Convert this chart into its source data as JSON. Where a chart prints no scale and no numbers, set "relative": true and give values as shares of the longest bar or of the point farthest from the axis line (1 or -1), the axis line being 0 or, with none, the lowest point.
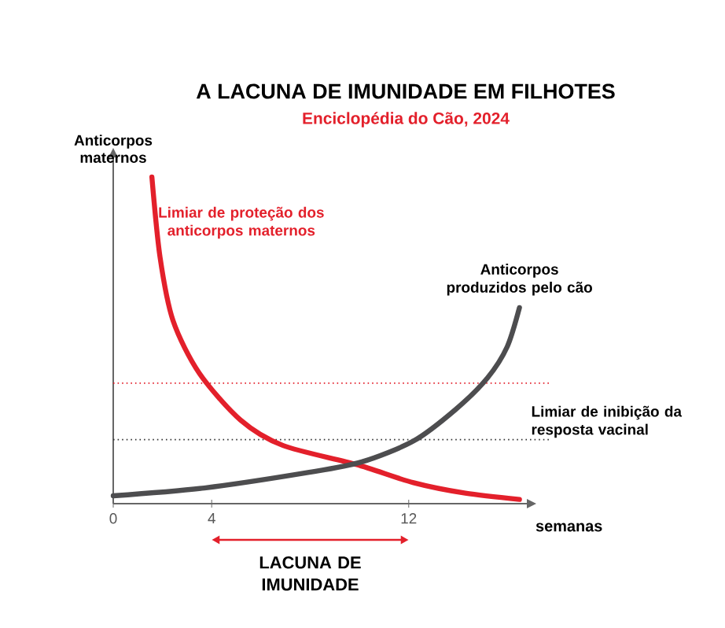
{
  "chart_data": {
    "type": "line",
    "title": "A LACUNA DE IMUNIDADE EM FILHOTES",
    "subtitle": "Enciclopédia do Cão, 2024",
    "xlabel": "semanas",
    "ylabel": "Anticorpos maternos",
    "relative": true,
    "xlim": [
      0,
      16.8
    ],
    "xticks": [
      0,
      4,
      12
    ],
    "tick_labels": "x",
    "series": [
      {
        "name": "Limiar de proteção dos anticorpos maternos",
        "color": "#e3202b",
        "x": [
          1.57,
          1.9,
          2.43,
          3.49,
          5.17,
          6.9,
          9.87,
          12.2,
          14.3,
          16.5
        ],
        "values": [
          1.0,
          0.755,
          0.56,
          0.4,
          0.256,
          0.178,
          0.12,
          0.064,
          0.032,
          0.013
        ]
      },
      {
        "name": "Anticorpos produzidos pelo cão",
        "color": "#4d4d4f",
        "x": [
          0,
          3.7,
          7.96,
          10.1,
          12.2,
          13.9,
          15.2,
          16.0,
          16.5
        ],
        "values": [
          0.024,
          0.048,
          0.096,
          0.128,
          0.192,
          0.288,
          0.385,
          0.48,
          0.6
        ]
      }
    ],
    "ref_lines": [
      {
        "axis": "y",
        "value": 0.369,
        "color": "#e3202b",
        "line_style": "dotted"
      },
      {
        "axis": "y",
        "value": 0.196,
        "label": "Limiar de inibição da resposta vacinal",
        "color": "#333333",
        "line_style": "dotted"
      }
    ],
    "annotations": [
      "LACUNA DE IMUNIDADE"
    ]
  }
}
